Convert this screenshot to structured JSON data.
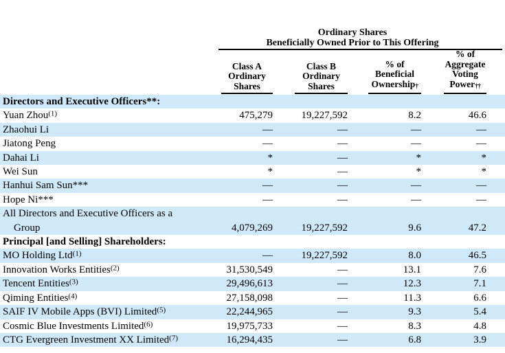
{
  "table": {
    "group_header": {
      "line1": "Ordinary Shares",
      "line2": "Beneficially Owned Prior to This Offering"
    },
    "columns": [
      {
        "lines": [
          "Class A",
          "Ordinary",
          "Shares"
        ],
        "footnote": ""
      },
      {
        "lines": [
          "Class B",
          "Ordinary",
          "Shares"
        ],
        "footnote": ""
      },
      {
        "lines": [
          "% of",
          "Beneficial",
          "Ownership"
        ],
        "footnote": "†"
      },
      {
        "lines": [
          "% of",
          "Aggregate",
          "Voting",
          "Power"
        ],
        "footnote": "††"
      }
    ],
    "rows": [
      {
        "label": "Directors and Executive Officers**:",
        "bold": true,
        "values": [
          "",
          "",
          "",
          ""
        ]
      },
      {
        "label": "Yuan Zhou",
        "sup": "(1)",
        "values": [
          "475,279",
          "19,227,592",
          "8.2",
          "46.6"
        ]
      },
      {
        "label": "Zhaohui Li",
        "values": [
          "—",
          "—",
          "—",
          "—"
        ]
      },
      {
        "label": "Jiatong Peng",
        "values": [
          "—",
          "—",
          "—",
          "—"
        ]
      },
      {
        "label": "Dahai Li",
        "values": [
          "*",
          "—",
          "*",
          "*"
        ]
      },
      {
        "label": "Wei Sun",
        "values": [
          "*",
          "—",
          "*",
          "*"
        ]
      },
      {
        "label": "Hanhui Sam Sun***",
        "values": [
          "—",
          "—",
          "—",
          "—"
        ]
      },
      {
        "label": "Hope Ni***",
        "values": [
          "—",
          "—",
          "—",
          "—"
        ]
      },
      {
        "label": "All Directors and Executive Officers as a",
        "line2": "Group",
        "values": [
          "4,079,269",
          "19,227,592",
          "9.6",
          "47.2"
        ]
      },
      {
        "label": "Principal [and Selling] Shareholders:",
        "bold": true,
        "values": [
          "",
          "",
          "",
          ""
        ]
      },
      {
        "label": "MO Holding Ltd",
        "sup": "(1)",
        "values": [
          "—",
          "19,227,592",
          "8.0",
          "46.5"
        ]
      },
      {
        "label": "Innovation Works Entities",
        "sup": "(2)",
        "values": [
          "31,530,549",
          "—",
          "13.1",
          "7.6"
        ]
      },
      {
        "label": "Tencent Entities",
        "sup": "(3)",
        "values": [
          "29,496,613",
          "—",
          "12.3",
          "7.1"
        ]
      },
      {
        "label": "Qiming Entities",
        "sup": "(4)",
        "values": [
          "27,158,098",
          "—",
          "11.3",
          "6.6"
        ]
      },
      {
        "label": "SAIF IV Mobile Apps (BVI) Limited",
        "sup": "(5)",
        "values": [
          "22,244,965",
          "—",
          "9.3",
          "5.4"
        ]
      },
      {
        "label": "Cosmic Blue Investments Limited",
        "sup": "(6)",
        "values": [
          "19,975,733",
          "—",
          "8.3",
          "4.8"
        ]
      },
      {
        "label": "CTG Evergreen Investment XX Limited",
        "sup": "(7)",
        "values": [
          "16,294,435",
          "—",
          "6.8",
          "3.9"
        ]
      }
    ],
    "colors": {
      "row_band": "#cfe9f8",
      "rule": "#000000",
      "text": "#000000"
    }
  }
}
